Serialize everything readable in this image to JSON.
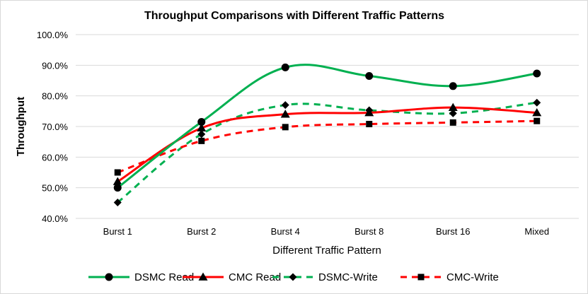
{
  "colors": {
    "green": "#00b050",
    "red": "#ff0000",
    "grid": "#d9d9d9",
    "text": "#000000"
  },
  "chart_data": {
    "type": "line",
    "title": "Throughput Comparisons with Different Traffic Patterns",
    "xlabel": "Different Traffic Pattern",
    "ylabel": "Throughput",
    "categories": [
      "Burst 1",
      "Burst 2",
      "Burst 4",
      "Burst 8",
      "Burst 16",
      "Mixed"
    ],
    "ylim": [
      0.4,
      1.0
    ],
    "yticks": [
      "40.0%",
      "50.0%",
      "60.0%",
      "70.0%",
      "80.0%",
      "90.0%",
      "100.0%"
    ],
    "ytick_values": [
      0.4,
      0.5,
      0.6,
      0.7,
      0.8,
      0.9,
      1.0
    ],
    "grid": "horizontal",
    "legend_position": "bottom",
    "series": [
      {
        "name": "DSMC Read",
        "values": [
          0.5,
          0.715,
          0.893,
          0.865,
          0.832,
          0.873
        ],
        "color": "#00b050",
        "line": "solid",
        "marker": "circle"
      },
      {
        "name": "CMC Read",
        "values": [
          0.52,
          0.695,
          0.74,
          0.745,
          0.762,
          0.745
        ],
        "color": "#ff0000",
        "line": "solid",
        "marker": "triangle"
      },
      {
        "name": "DSMC-Write",
        "values": [
          0.452,
          0.675,
          0.77,
          0.753,
          0.743,
          0.778
        ],
        "color": "#00b050",
        "line": "dashed",
        "marker": "diamond"
      },
      {
        "name": "CMC-Write",
        "values": [
          0.55,
          0.653,
          0.698,
          0.708,
          0.713,
          0.718
        ],
        "color": "#ff0000",
        "line": "dashed",
        "marker": "square"
      }
    ]
  }
}
